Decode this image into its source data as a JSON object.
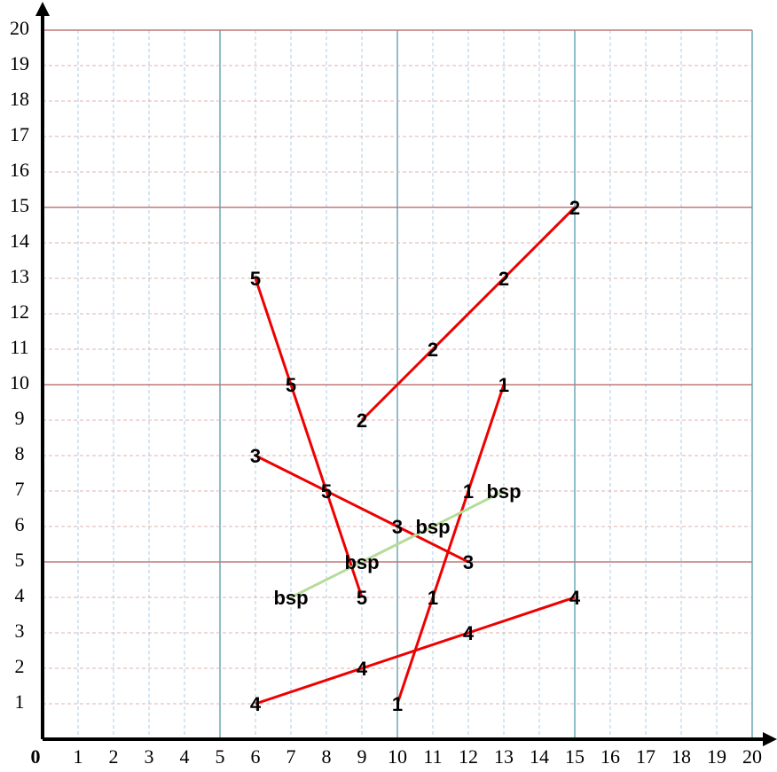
{
  "chart_data": {
    "type": "line",
    "xlim": [
      0,
      20
    ],
    "ylim": [
      0,
      20
    ],
    "xticks": [
      0,
      1,
      2,
      3,
      4,
      5,
      6,
      7,
      8,
      9,
      10,
      11,
      12,
      13,
      14,
      15,
      16,
      17,
      18,
      19,
      20
    ],
    "yticks": [
      1,
      2,
      3,
      4,
      5,
      6,
      7,
      8,
      9,
      10,
      11,
      12,
      13,
      14,
      15,
      16,
      17,
      18,
      19,
      20
    ],
    "major_every": 5,
    "grid": true,
    "series": [
      {
        "name": "1",
        "color": "#ee0000",
        "x": [
          10,
          11,
          12,
          13
        ],
        "values": [
          1,
          4,
          7,
          10
        ]
      },
      {
        "name": "2",
        "color": "#ee0000",
        "x": [
          9,
          11,
          13,
          15
        ],
        "values": [
          9,
          11,
          13,
          15
        ]
      },
      {
        "name": "3",
        "color": "#ee0000",
        "x": [
          6,
          10,
          12
        ],
        "values": [
          8,
          6,
          5
        ]
      },
      {
        "name": "4",
        "color": "#ee0000",
        "x": [
          6,
          9,
          12,
          15
        ],
        "values": [
          1,
          2,
          3,
          4
        ]
      },
      {
        "name": "5",
        "color": "#ee0000",
        "x": [
          6,
          7,
          8,
          9
        ],
        "values": [
          13,
          10,
          7,
          4
        ]
      },
      {
        "name": "bsp",
        "color": "#b5dc9a",
        "x": [
          7,
          9,
          11,
          13
        ],
        "values": [
          4,
          5,
          6,
          7
        ]
      }
    ]
  }
}
